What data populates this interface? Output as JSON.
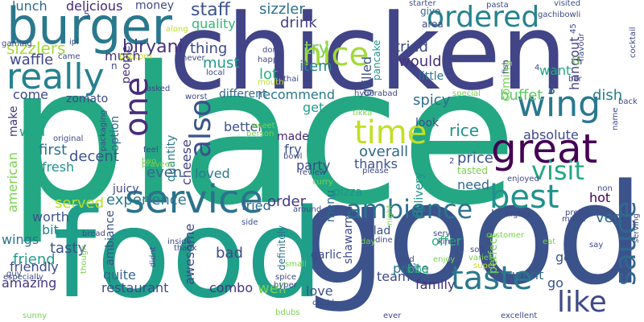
{
  "words": [
    {
      "text": "place",
      "color": "#23a883"
    },
    {
      "text": "good",
      "color": "#3b528b"
    },
    {
      "text": "food",
      "color": "#1f9e89"
    },
    {
      "text": "chicken",
      "color": "#414487"
    },
    {
      "text": "burger",
      "color": "#2a788e"
    },
    {
      "text": "great",
      "color": "#440154"
    },
    {
      "text": "service",
      "color": "#2c728e"
    },
    {
      "text": "really",
      "color": "#26828e"
    },
    {
      "text": "taste",
      "color": "#2a788e"
    },
    {
      "text": "like",
      "color": "#3e4a89"
    },
    {
      "text": "wing",
      "color": "#2a788e"
    },
    {
      "text": "ordered",
      "color": "#26828e"
    },
    {
      "text": "nice",
      "color": "#a0da39"
    },
    {
      "text": "time",
      "color": "#c2df23"
    },
    {
      "text": "best",
      "color": "#21918c"
    },
    {
      "text": "ambience",
      "color": "#2c728e"
    },
    {
      "text": "visit",
      "color": "#22a785"
    },
    {
      "text": "also",
      "color": "#3b528b"
    },
    {
      "text": "sauce",
      "color": "#31688e"
    },
    {
      "text": "one",
      "color": "#472d7b"
    },
    {
      "text": "experience",
      "color": "#2a788e"
    },
    {
      "text": "biryani",
      "color": "#46337f"
    },
    {
      "text": "staff",
      "color": "#3b528b"
    },
    {
      "text": "sizzlers",
      "color": "#a5db36"
    },
    {
      "text": "waffle",
      "color": "#3f4788"
    },
    {
      "text": "lunch",
      "color": "#31688e"
    },
    {
      "text": "delicious",
      "color": "#482878"
    },
    {
      "text": "money",
      "color": "#3e4a89"
    },
    {
      "text": "sizzler",
      "color": "#2d708e"
    },
    {
      "text": "drink",
      "color": "#433e85"
    },
    {
      "text": "quality",
      "color": "#35b779"
    },
    {
      "text": "much",
      "color": "#46337f"
    },
    {
      "text": "thing",
      "color": "#3e4a89"
    },
    {
      "text": "must",
      "color": "#1f9a8a"
    },
    {
      "text": "try",
      "color": "#7ad151"
    },
    {
      "text": "tried",
      "color": "#3e4a89"
    },
    {
      "text": "would",
      "color": "#46327e"
    },
    {
      "text": "item",
      "color": "#25858e"
    },
    {
      "text": "lot",
      "color": "#2ab07f"
    },
    {
      "text": "recommend",
      "color": "#2a788e"
    },
    {
      "text": "different",
      "color": "#31688e"
    },
    {
      "text": "come",
      "color": "#3e4a89"
    },
    {
      "text": "spicy",
      "color": "#2d708e"
    },
    {
      "text": "buffet",
      "color": "#5ec962"
    },
    {
      "text": "dish",
      "color": "#287d8e"
    },
    {
      "text": "hangout",
      "color": "#433e85"
    },
    {
      "text": "want",
      "color": "#22a884"
    },
    {
      "text": "grilled",
      "color": "#3b528b"
    },
    {
      "text": "coming",
      "color": "#7ad151"
    },
    {
      "text": "little",
      "color": "#2c738e"
    },
    {
      "text": "pancake",
      "color": "#1f958b"
    },
    {
      "text": "fry",
      "color": "#3b528b"
    },
    {
      "text": "made",
      "color": "#482777"
    },
    {
      "text": "cheese",
      "color": "#414487"
    },
    {
      "text": "decent",
      "color": "#3b528b"
    },
    {
      "text": "option",
      "color": "#31688e"
    },
    {
      "text": "first",
      "color": "#2c728e"
    },
    {
      "text": "wild",
      "color": "#22a785"
    },
    {
      "text": "make",
      "color": "#453781"
    },
    {
      "text": "overall",
      "color": "#31688e"
    },
    {
      "text": "thanks",
      "color": "#3b528b"
    },
    {
      "text": "price",
      "color": "#3b528b"
    },
    {
      "text": "absolute",
      "color": "#3e4a89"
    },
    {
      "text": "rice",
      "color": "#21918c"
    },
    {
      "text": "even",
      "color": "#31688e"
    },
    {
      "text": "loved",
      "color": "#2a788e"
    },
    {
      "text": "better",
      "color": "#3b528b"
    },
    {
      "text": "get",
      "color": "#1fa088"
    },
    {
      "text": "order",
      "color": "#443983"
    },
    {
      "text": "fried",
      "color": "#31688e"
    },
    {
      "text": "served",
      "color": "#bddf26"
    },
    {
      "text": "juicy",
      "color": "#3e4a89"
    },
    {
      "text": "american",
      "color": "#7ad151"
    },
    {
      "text": "fresh",
      "color": "#21918c"
    },
    {
      "text": "worth",
      "color": "#3b528b"
    },
    {
      "text": "bit",
      "color": "#26828e"
    },
    {
      "text": "wings",
      "color": "#2c728e"
    },
    {
      "text": "friend",
      "color": "#1f9e89"
    },
    {
      "text": "tasty",
      "color": "#3b528b"
    },
    {
      "text": "friendly",
      "color": "#3e4a89"
    },
    {
      "text": "amazing",
      "color": "#453781"
    },
    {
      "text": "restaurant",
      "color": "#3e4a89"
    },
    {
      "text": "combo",
      "color": "#46337f"
    },
    {
      "text": "well",
      "color": "#75d054"
    },
    {
      "text": "love",
      "color": "#3b528b"
    },
    {
      "text": "team",
      "color": "#3e4a89"
    },
    {
      "text": "family",
      "color": "#46337f"
    },
    {
      "text": "polite",
      "color": "#2c728e"
    },
    {
      "text": "went",
      "color": "#31688e"
    },
    {
      "text": "go",
      "color": "#3b528b"
    },
    {
      "text": "bad",
      "color": "#3e4a89"
    },
    {
      "text": "quite",
      "color": "#31688e"
    },
    {
      "text": "awesome",
      "color": "#3e4a89"
    },
    {
      "text": "ambiance",
      "color": "#3b528b"
    },
    {
      "text": "party",
      "color": "#3e4a89"
    },
    {
      "text": "pizza",
      "color": "#21918c"
    },
    {
      "text": "salad",
      "color": "#3b528b"
    },
    {
      "text": "bbq",
      "color": "#2fb47c"
    },
    {
      "text": "offer",
      "color": "#2ab07f"
    },
    {
      "text": "shawarma",
      "color": "#3e4a89"
    },
    {
      "text": "garlic",
      "color": "#3e4a89"
    },
    {
      "text": "menu",
      "color": "#31688e"
    },
    {
      "text": "definitely",
      "color": "#2c728e"
    },
    {
      "text": "need",
      "color": "#31688e"
    },
    {
      "text": "hot",
      "color": "#440154"
    },
    {
      "text": "veg",
      "color": "#31688e"
    },
    {
      "text": "got",
      "color": "#3b528b"
    },
    {
      "text": "perfect",
      "color": "#7ad151"
    },
    {
      "text": "delivery",
      "color": "#21918c"
    },
    {
      "text": "tasted",
      "color": "#7ad151"
    },
    {
      "text": "quantity",
      "color": "#2a788e"
    },
    {
      "text": "people",
      "color": "#46337f"
    },
    {
      "text": "zomato",
      "color": "#3e4a89"
    },
    {
      "text": "tikka",
      "color": "#7ad151"
    },
    {
      "text": "hyderabad",
      "color": "#3e4a89"
    },
    {
      "text": "look",
      "color": "#3b528b"
    },
    {
      "text": "le",
      "color": "#3b528b"
    },
    {
      "text": "u",
      "color": "#7ad151"
    },
    {
      "text": "3",
      "color": "#3b528b"
    },
    {
      "text": "give",
      "color": "#31688e"
    },
    {
      "text": "area",
      "color": "#3e4a89"
    },
    {
      "text": "pasta",
      "color": "#3e4a89"
    },
    {
      "text": "starter",
      "color": "#3b528b"
    },
    {
      "text": "visited",
      "color": "#3b528b"
    },
    {
      "text": "gachibowli",
      "color": "#3e4a89"
    },
    {
      "text": "cocktail",
      "color": "#3e4a89"
    },
    {
      "text": "mouth",
      "color": "#bddf26"
    },
    {
      "text": "thai",
      "color": "#3e4a89"
    },
    {
      "text": "happy",
      "color": "#3e4a89"
    },
    {
      "text": "dont",
      "color": "#3e4a89"
    },
    {
      "text": "local",
      "color": "#3e4a89"
    },
    {
      "text": "never",
      "color": "#3e4a89"
    },
    {
      "text": "along",
      "color": "#bddf26"
    },
    {
      "text": "popcorn",
      "color": "#bddf26"
    },
    {
      "text": "came",
      "color": "#3e4a89"
    },
    {
      "text": "ipl",
      "color": "#3e4a89"
    },
    {
      "text": "gaming",
      "color": "#3e4a89"
    },
    {
      "text": "asked",
      "color": "#3e4a89"
    },
    {
      "text": "worst",
      "color": "#3e4a89"
    },
    {
      "text": "special",
      "color": "#7ad151"
    },
    {
      "text": "fish",
      "color": "#3e4a89"
    },
    {
      "text": "bar",
      "color": "#3e4a89"
    },
    {
      "text": "flavour",
      "color": "#3e4a89"
    },
    {
      "text": "back",
      "color": "#3e4a89"
    },
    {
      "text": "name",
      "color": "#3e4a89"
    },
    {
      "text": "serving",
      "color": "#3e4a89"
    },
    {
      "text": "pretty",
      "color": "#3e4a89"
    },
    {
      "text": "music",
      "color": "#3e4a89"
    },
    {
      "text": "non",
      "color": "#3e4a89"
    },
    {
      "text": "enjoyed",
      "color": "#3e4a89"
    },
    {
      "text": "highly",
      "color": "#3e4a89"
    },
    {
      "text": "say",
      "color": "#3e4a89"
    },
    {
      "text": "eat",
      "color": "#7ad151"
    },
    {
      "text": "soft",
      "color": "#3e4a89"
    },
    {
      "text": "variety",
      "color": "#7ad151"
    },
    {
      "text": "super",
      "color": "#bddf26"
    },
    {
      "text": "kind",
      "color": "#3e4a89"
    },
    {
      "text": "cold",
      "color": "#3e4a89"
    },
    {
      "text": "enjoy",
      "color": "#7ad151"
    },
    {
      "text": "excellent",
      "color": "#3e4a89"
    },
    {
      "text": "ever",
      "color": "#3e4a89"
    },
    {
      "text": "serve",
      "color": "#3e4a89"
    },
    {
      "text": "customer",
      "color": "#7ad151"
    },
    {
      "text": "dine",
      "color": "#3e4a89"
    },
    {
      "text": "day",
      "color": "#7ad151"
    },
    {
      "text": "night",
      "color": "#7ad151"
    },
    {
      "text": "please",
      "color": "#3e4a89"
    },
    {
      "text": "review",
      "color": "#3e4a89"
    },
    {
      "text": "curry",
      "color": "#7ad151"
    },
    {
      "text": "bowl",
      "color": "#3e4a89"
    },
    {
      "text": "person",
      "color": "#7ad151"
    },
    {
      "text": "sweet",
      "color": "#7ad151"
    },
    {
      "text": "around",
      "color": "#3e4a89"
    },
    {
      "text": "side",
      "color": "#3e4a89"
    },
    {
      "text": "could",
      "color": "#3e4a89"
    },
    {
      "text": "spice",
      "color": "#3e4a89"
    },
    {
      "text": "hyper",
      "color": "#3e4a89"
    },
    {
      "text": "small",
      "color": "#7ad151"
    },
    {
      "text": "bdubs",
      "color": "#7ad151"
    },
    {
      "text": "didnt",
      "color": "#3e4a89"
    },
    {
      "text": "though",
      "color": "#7ad151"
    },
    {
      "text": "inside",
      "color": "#3e4a89"
    },
    {
      "text": "thank",
      "color": "#3e4a89"
    },
    {
      "text": "bread",
      "color": "#3e4a89"
    },
    {
      "text": "guy",
      "color": "#3e4a89"
    },
    {
      "text": "especially",
      "color": "#3e4a89"
    },
    {
      "text": "sunny",
      "color": "#7ad151"
    },
    {
      "text": "packaging",
      "color": "#3e4a89"
    },
    {
      "text": "original",
      "color": "#3e4a89"
    },
    {
      "text": "feel",
      "color": "#3e4a89"
    },
    {
      "text": "two",
      "color": "#7ad151"
    },
    {
      "text": "praveen",
      "color": "#7ad151"
    },
    {
      "text": "5",
      "color": "#3e4a89"
    },
    {
      "text": "4",
      "color": "#3e4a89"
    },
    {
      "text": "45",
      "color": "#3e4a89"
    },
    {
      "text": "2",
      "color": "#3e4a89"
    },
    {
      "text": "n",
      "color": "#3e4a89"
    }
  ]
}
